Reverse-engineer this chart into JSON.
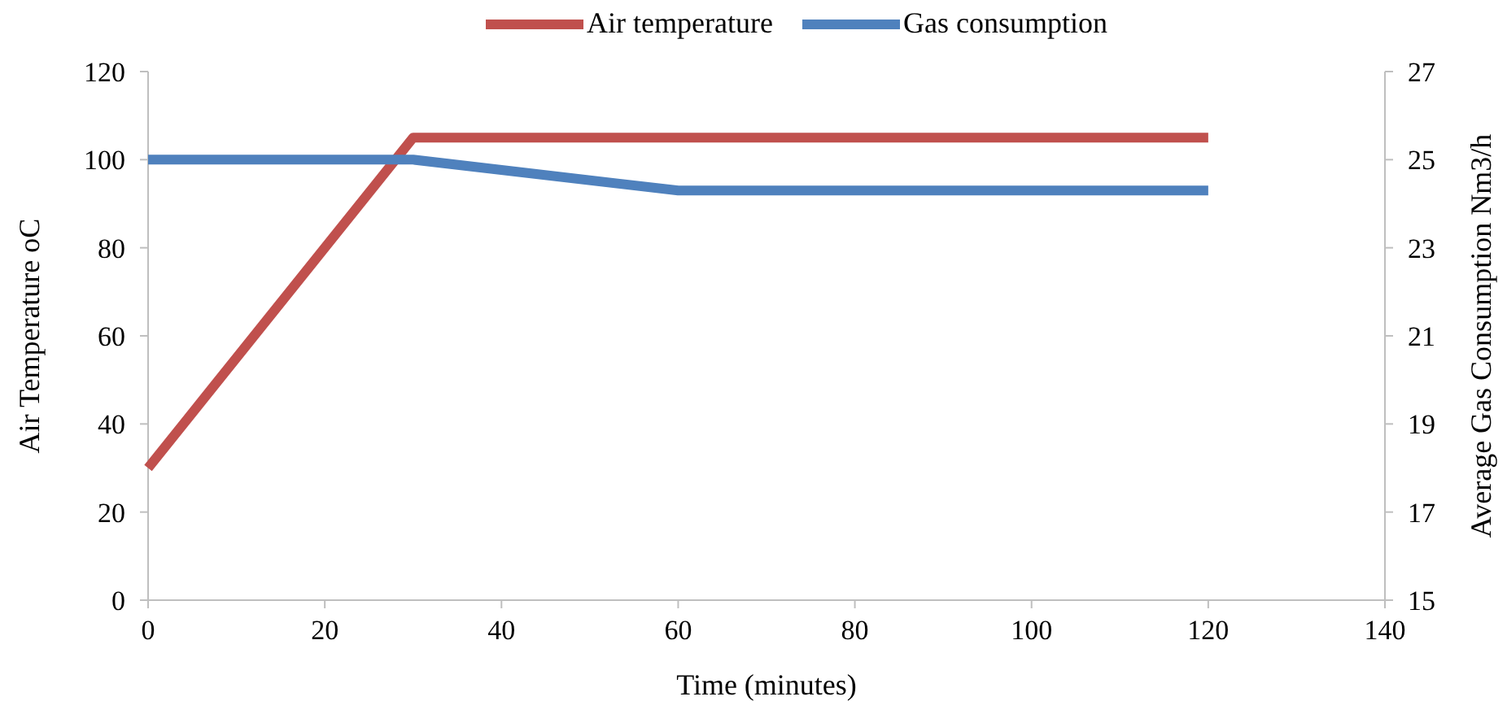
{
  "chart_data": {
    "type": "line",
    "xlabel": "Time (minutes)",
    "ylabel": "Air Temperature oC",
    "y2label": "Average Gas Consumption Nm3/h",
    "xlim": [
      0,
      140
    ],
    "xticks": [
      0,
      20,
      40,
      60,
      80,
      100,
      120,
      140
    ],
    "ylim": [
      0,
      120
    ],
    "yticks": [
      0,
      20,
      40,
      60,
      80,
      100,
      120
    ],
    "y2lim": [
      15,
      27
    ],
    "y2ticks": [
      15,
      17,
      19,
      21,
      23,
      25,
      27
    ],
    "grid": false,
    "legend": "top",
    "marker": "none",
    "line_style": "solid",
    "series": [
      {
        "name": "Air temperature",
        "color": "#c0504d",
        "x": [
          0,
          30,
          60,
          120
        ],
        "values": [
          30,
          105,
          105,
          105
        ]
      },
      {
        "name": "Gas consumption",
        "color": "#4f81bd",
        "axis": "y2",
        "x": [
          0,
          30,
          60,
          120
        ],
        "values": [
          25,
          25,
          24.3,
          24.3
        ]
      }
    ]
  }
}
